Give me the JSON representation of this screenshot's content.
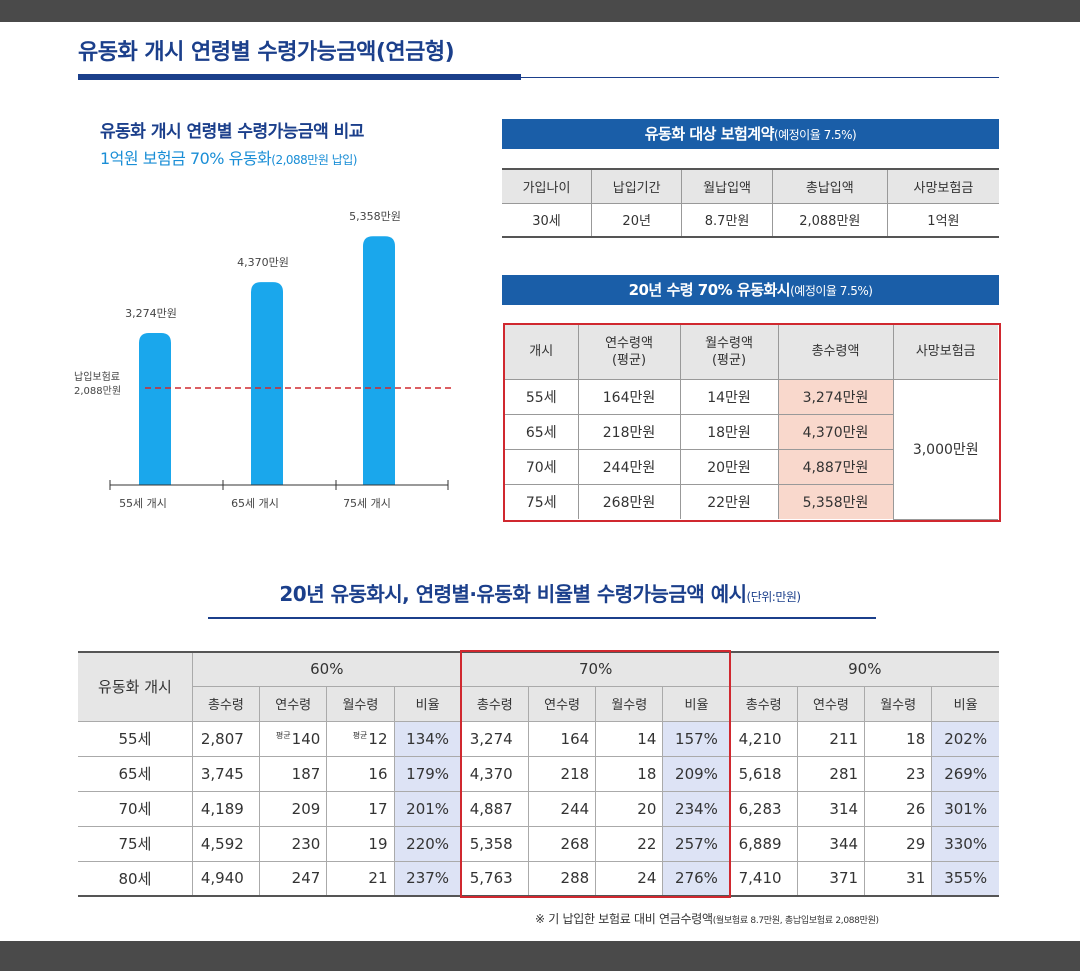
{
  "page_title": "유동화 개시 연령별 수령가능금액(연금형)",
  "chart_title": "유동화 개시 연령별 수령가능금액 비교",
  "chart_subtitle_main": "1억원 보험금 70% 유동화",
  "chart_subtitle_note": "(2,088만원 납입)",
  "chart_data": {
    "type": "bar",
    "categories": [
      "55세 개시",
      "65세 개시",
      "75세 개시"
    ],
    "values": [
      3274,
      4370,
      5358
    ],
    "value_labels": [
      "3,274만원",
      "4,370만원",
      "5,358만원"
    ],
    "reference_line": {
      "value": 2088,
      "label_line1": "납입보험료",
      "label_line2": "2,088만원"
    },
    "ylim": [
      0,
      5600
    ],
    "bar_color": "#1aa7ec",
    "reference_color": "#d0282f"
  },
  "contract_box": {
    "header": "유동화 대상 보험계약",
    "header_note": "(예정이율 7.5%)",
    "columns": [
      "가입나이",
      "납입기간",
      "월납입액",
      "총납입액",
      "사망보험금"
    ],
    "row": [
      "30세",
      "20년",
      "8.7만원",
      "2,088만원",
      "1억원"
    ]
  },
  "liquid_box": {
    "header": "20년 수령 70% 유동화시",
    "header_note": "(예정이율 7.5%)",
    "columns": [
      "개시",
      "연수령액\n(평균)",
      "월수령액\n(평균)",
      "총수령액",
      "사망보험금"
    ],
    "rows": [
      [
        "55세",
        "164만원",
        "14만원",
        "3,274만원"
      ],
      [
        "65세",
        "218만원",
        "18만원",
        "4,370만원"
      ],
      [
        "70세",
        "244만원",
        "20만원",
        "4,887만원"
      ],
      [
        "75세",
        "268만원",
        "22만원",
        "5,358만원"
      ]
    ],
    "death_benefit": "3,000만원"
  },
  "section2_title": "20년 유동화시, 연령별·유동화 비율별 수령가능금액 예시",
  "section2_note": "(단위:만원)",
  "matrix": {
    "row_header": "유동화 개시",
    "groups": [
      "60%",
      "70%",
      "90%"
    ],
    "subcolumns": [
      "총수령",
      "연수령",
      "월수령",
      "비율"
    ],
    "avg_mark": "평균",
    "rows": [
      {
        "age": "55세",
        "values": [
          "2,807",
          "140",
          "12",
          "134%",
          "3,274",
          "164",
          "14",
          "157%",
          "4,210",
          "211",
          "18",
          "202%"
        ]
      },
      {
        "age": "65세",
        "values": [
          "3,745",
          "187",
          "16",
          "179%",
          "4,370",
          "218",
          "18",
          "209%",
          "5,618",
          "281",
          "23",
          "269%"
        ]
      },
      {
        "age": "70세",
        "values": [
          "4,189",
          "209",
          "17",
          "201%",
          "4,887",
          "244",
          "20",
          "234%",
          "6,283",
          "314",
          "26",
          "301%"
        ]
      },
      {
        "age": "75세",
        "values": [
          "4,592",
          "230",
          "19",
          "220%",
          "5,358",
          "268",
          "22",
          "257%",
          "6,889",
          "344",
          "29",
          "330%"
        ]
      },
      {
        "age": "80세",
        "values": [
          "4,940",
          "247",
          "21",
          "237%",
          "5,763",
          "288",
          "24",
          "276%",
          "7,410",
          "371",
          "31",
          "355%"
        ]
      }
    ]
  },
  "footnote_main": "※ 기 납입한 보험료 대비 연금수령액",
  "footnote_note": "(월보험료 8.7만원, 총납입보험료 2,088만원)"
}
